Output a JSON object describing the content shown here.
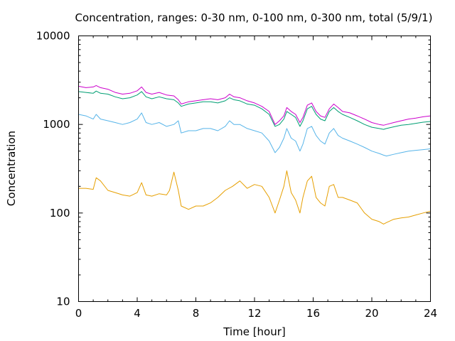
{
  "chart_data": {
    "type": "line",
    "title": "Concentration, ranges: 0-30 nm, 0-100 nm, 0-300 nm, total (5/9/1)",
    "xlabel": "Time [hour]",
    "ylabel": "Concentration",
    "xlim": [
      0,
      24
    ],
    "ylim": [
      10,
      10000
    ],
    "yscale": "log",
    "grid": false,
    "legend": "none",
    "x_ticks": [
      "0",
      "4",
      "8",
      "12",
      "16",
      "20",
      "24"
    ],
    "y_ticks": [
      "10",
      "100",
      "1000",
      "10000"
    ],
    "series": [
      {
        "color": "#cc00cc",
        "x": [
          0,
          0.5,
          1,
          1.2,
          1.5,
          2,
          2.5,
          3,
          3.5,
          4,
          4.3,
          4.6,
          5,
          5.5,
          6,
          6.5,
          6.8,
          7,
          7.5,
          8,
          8.5,
          9,
          9.5,
          10,
          10.3,
          10.6,
          11,
          11.5,
          12,
          12.5,
          13,
          13.4,
          13.7,
          14,
          14.2,
          14.5,
          14.8,
          15.1,
          15.3,
          15.6,
          15.9,
          16.2,
          16.5,
          16.8,
          17.1,
          17.4,
          17.7,
          18,
          18.5,
          19,
          19.5,
          20,
          20.5,
          20.8,
          21,
          21.5,
          22,
          22.5,
          23,
          23.5,
          24
        ],
        "values": [
          2700,
          2600,
          2650,
          2750,
          2600,
          2500,
          2300,
          2200,
          2250,
          2400,
          2650,
          2300,
          2200,
          2300,
          2150,
          2100,
          1900,
          1700,
          1800,
          1850,
          1900,
          1950,
          1900,
          2000,
          2200,
          2050,
          2000,
          1850,
          1750,
          1600,
          1400,
          1000,
          1100,
          1250,
          1550,
          1400,
          1300,
          1050,
          1200,
          1650,
          1750,
          1400,
          1250,
          1200,
          1500,
          1700,
          1550,
          1400,
          1350,
          1250,
          1150,
          1050,
          1000,
          980,
          1000,
          1050,
          1100,
          1150,
          1180,
          1220,
          1250
        ]
      },
      {
        "color": "#009e73",
        "x": [
          0,
          0.5,
          1,
          1.2,
          1.5,
          2,
          2.5,
          3,
          3.5,
          4,
          4.3,
          4.6,
          5,
          5.5,
          6,
          6.5,
          6.8,
          7,
          7.5,
          8,
          8.5,
          9,
          9.5,
          10,
          10.3,
          10.6,
          11,
          11.5,
          12,
          12.5,
          13,
          13.4,
          13.7,
          14,
          14.2,
          14.5,
          14.8,
          15.1,
          15.3,
          15.6,
          15.9,
          16.2,
          16.5,
          16.8,
          17.1,
          17.4,
          17.7,
          18,
          18.5,
          19,
          19.5,
          20,
          20.5,
          20.8,
          21,
          21.5,
          22,
          22.5,
          23,
          23.5,
          24
        ],
        "values": [
          2350,
          2300,
          2250,
          2380,
          2250,
          2200,
          2050,
          1950,
          2000,
          2150,
          2350,
          2050,
          1950,
          2050,
          1950,
          1900,
          1750,
          1600,
          1700,
          1750,
          1800,
          1800,
          1750,
          1850,
          2000,
          1900,
          1850,
          1700,
          1650,
          1500,
          1300,
          950,
          1000,
          1150,
          1400,
          1300,
          1200,
          950,
          1100,
          1500,
          1600,
          1300,
          1150,
          1100,
          1400,
          1550,
          1400,
          1300,
          1200,
          1100,
          1000,
          930,
          900,
          880,
          900,
          940,
          980,
          1000,
          1030,
          1060,
          1080
        ]
      },
      {
        "color": "#56b4e9",
        "x": [
          0,
          0.5,
          1,
          1.2,
          1.5,
          2,
          2.5,
          3,
          3.5,
          4,
          4.3,
          4.6,
          5,
          5.5,
          6,
          6.5,
          6.8,
          7,
          7.5,
          8,
          8.5,
          9,
          9.5,
          10,
          10.3,
          10.6,
          11,
          11.5,
          12,
          12.5,
          13,
          13.4,
          13.7,
          14,
          14.2,
          14.5,
          14.8,
          15.1,
          15.3,
          15.6,
          15.9,
          16.2,
          16.5,
          16.8,
          17.1,
          17.4,
          17.7,
          18,
          18.5,
          19,
          19.5,
          20,
          20.5,
          20.8,
          21,
          21.5,
          22,
          22.5,
          23,
          23.5,
          24
        ],
        "values": [
          1300,
          1250,
          1150,
          1300,
          1150,
          1100,
          1050,
          1000,
          1050,
          1150,
          1350,
          1050,
          1000,
          1050,
          950,
          1000,
          1100,
          800,
          850,
          850,
          900,
          900,
          850,
          950,
          1100,
          1000,
          1000,
          900,
          850,
          800,
          650,
          480,
          550,
          700,
          900,
          700,
          650,
          500,
          600,
          900,
          950,
          750,
          650,
          600,
          800,
          900,
          750,
          700,
          650,
          600,
          550,
          500,
          470,
          450,
          440,
          460,
          480,
          500,
          510,
          520,
          530
        ]
      },
      {
        "color": "#e69f00",
        "x": [
          0,
          0.5,
          1,
          1.2,
          1.5,
          2,
          2.5,
          3,
          3.5,
          4,
          4.3,
          4.6,
          5,
          5.5,
          6,
          6.2,
          6.5,
          6.8,
          7,
          7.5,
          8,
          8.5,
          9,
          9.5,
          10,
          10.5,
          11,
          11.5,
          12,
          12.5,
          13,
          13.4,
          13.7,
          14,
          14.2,
          14.5,
          14.8,
          15.1,
          15.3,
          15.6,
          15.9,
          16.2,
          16.5,
          16.8,
          17.1,
          17.4,
          17.7,
          18,
          18.5,
          19,
          19.5,
          20,
          20.5,
          20.8,
          21,
          21.5,
          22,
          22.5,
          23,
          23.5,
          24
        ],
        "values": [
          190,
          190,
          185,
          250,
          230,
          180,
          170,
          160,
          155,
          170,
          220,
          160,
          155,
          165,
          160,
          180,
          290,
          180,
          120,
          110,
          120,
          120,
          130,
          150,
          180,
          200,
          230,
          190,
          210,
          200,
          150,
          100,
          140,
          200,
          300,
          170,
          140,
          100,
          150,
          230,
          260,
          150,
          130,
          120,
          200,
          210,
          150,
          150,
          140,
          130,
          100,
          85,
          80,
          75,
          78,
          85,
          88,
          90,
          95,
          100,
          105
        ]
      }
    ]
  }
}
